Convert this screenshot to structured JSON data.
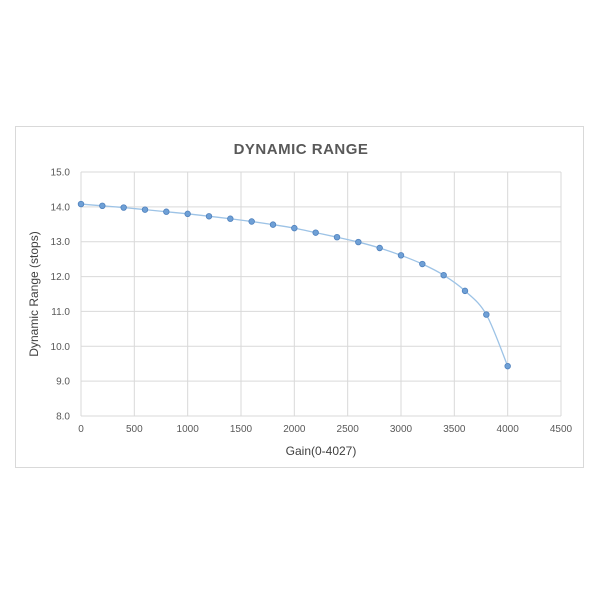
{
  "chart_data": {
    "type": "line",
    "title": "DYNAMIC RANGE",
    "xlabel": "Gain(0-4027)",
    "ylabel": "Dynamic Range (stops)",
    "xlim": [
      0,
      4500
    ],
    "ylim": [
      8.0,
      15.0
    ],
    "xticks": [
      "0",
      "500",
      "1000",
      "1500",
      "2000",
      "2500",
      "3000",
      "3500",
      "4000",
      "4500"
    ],
    "yticks": [
      "8.0",
      "9.0",
      "10.0",
      "11.0",
      "12.0",
      "13.0",
      "14.0",
      "15.0"
    ],
    "grid": true,
    "legend": "none",
    "line_color": "#9dc3e6",
    "marker_color": "#6fa0d6",
    "series": [
      {
        "x": [
          0,
          200,
          400,
          600,
          800,
          1000,
          1200,
          1400,
          1600,
          1800,
          2000,
          2200,
          2400,
          2600,
          2800,
          3000,
          3200,
          3400,
          3600,
          3800,
          4000
        ],
        "y": [
          14.08,
          14.03,
          13.98,
          13.92,
          13.86,
          13.8,
          13.73,
          13.66,
          13.58,
          13.49,
          13.39,
          13.26,
          13.13,
          12.99,
          12.82,
          12.61,
          12.36,
          12.04,
          11.59,
          10.91,
          9.43
        ]
      }
    ]
  }
}
